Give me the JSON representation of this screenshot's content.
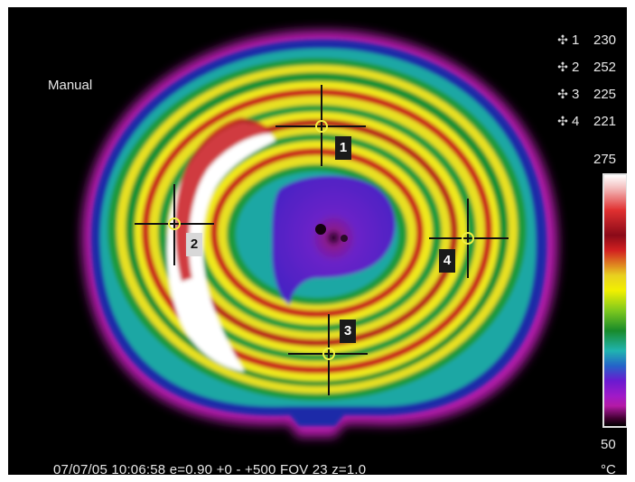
{
  "thermal_view": {
    "mode": "Manual",
    "markers": [
      {
        "icon": "crosshair-icon",
        "symbol": "✣",
        "number": "1",
        "value": "230"
      },
      {
        "icon": "crosshair-icon",
        "symbol": "✣",
        "number": "2",
        "value": "252"
      },
      {
        "icon": "crosshair-icon",
        "symbol": "✣",
        "number": "3",
        "value": "225"
      },
      {
        "icon": "crosshair-icon",
        "symbol": "✣",
        "number": "4",
        "value": "221"
      }
    ],
    "spot_labels": [
      "1",
      "2",
      "3",
      "4"
    ],
    "scale": {
      "max": "275",
      "min": "50",
      "unit": "°C"
    },
    "status_line": "07/07/05 10:06:58 e=0.90  +0 -  +500  FOV 23 z=1.0",
    "palette": {
      "background": "#000000",
      "outer_ring": "#b81ab0",
      "cool": "#2a6ad0",
      "mid": "#1f9a3a",
      "warm": "#f0e81a",
      "hot": "#c8181e",
      "hottest": "#ffffff",
      "center": "#5a1cc8"
    }
  }
}
